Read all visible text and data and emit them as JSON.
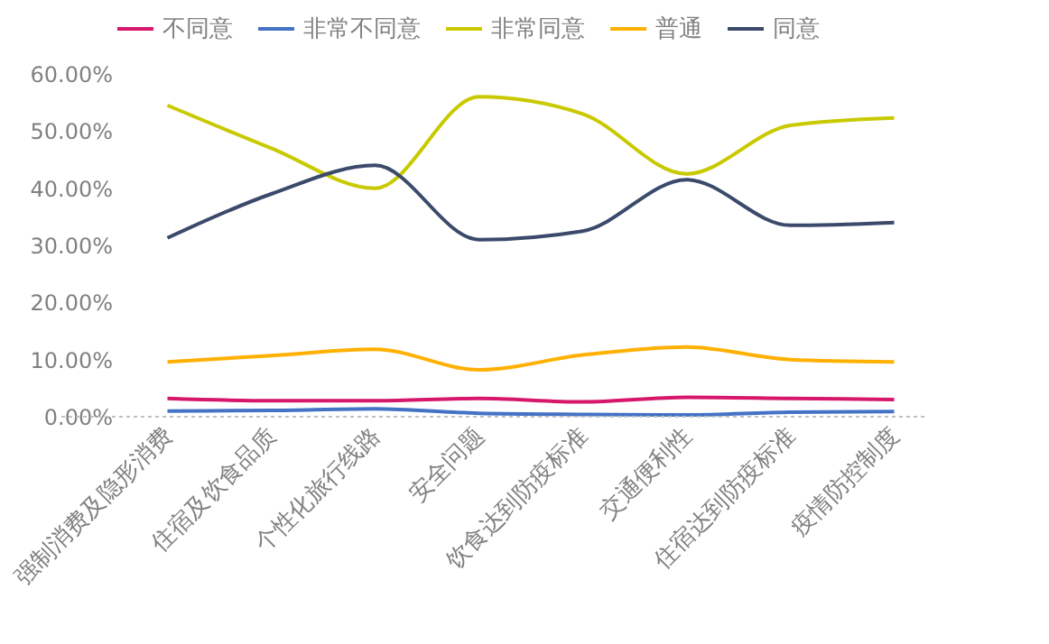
{
  "chart_data": {
    "type": "line",
    "categories": [
      "强制消费及隐形消费",
      "住宿及饮食品质",
      "个性化旅行线路",
      "安全问题",
      "饮食达到防疫标准",
      "交通便利性",
      "住宿达到防疫标准",
      "疫情防控制度"
    ],
    "series": [
      {
        "name": "不同意",
        "color": "#d6176b",
        "values": [
          3.2,
          2.8,
          2.8,
          3.2,
          2.6,
          3.4,
          3.2,
          3.0
        ]
      },
      {
        "name": "非常不同意",
        "color": "#4472c4",
        "values": [
          1.0,
          1.1,
          1.4,
          0.6,
          0.4,
          0.3,
          0.8,
          0.9
        ]
      },
      {
        "name": "非常同意",
        "color": "#c9c900",
        "values": [
          54.5,
          47,
          40,
          56,
          53,
          42.5,
          51,
          52.3
        ]
      },
      {
        "name": "普通",
        "color": "#ffb000",
        "values": [
          9.6,
          10.7,
          11.8,
          8.2,
          10.8,
          12.2,
          10,
          9.6
        ]
      },
      {
        "name": "同意",
        "color": "#3b4a6b",
        "values": [
          31.3,
          39,
          44,
          31,
          32.5,
          41.5,
          33.5,
          34
        ]
      }
    ],
    "ylim": [
      0,
      60
    ],
    "yticks": [
      {
        "value": 0,
        "label": "0.00%"
      },
      {
        "value": 10,
        "label": "10.00%"
      },
      {
        "value": 20,
        "label": "20.00%"
      },
      {
        "value": 30,
        "label": "30.00%"
      },
      {
        "value": 40,
        "label": "40.00%"
      },
      {
        "value": 50,
        "label": "50.00%"
      },
      {
        "value": 60,
        "label": "60.00%"
      }
    ],
    "grid": false,
    "legend": "top",
    "marker": "none",
    "line_style": "solid"
  }
}
